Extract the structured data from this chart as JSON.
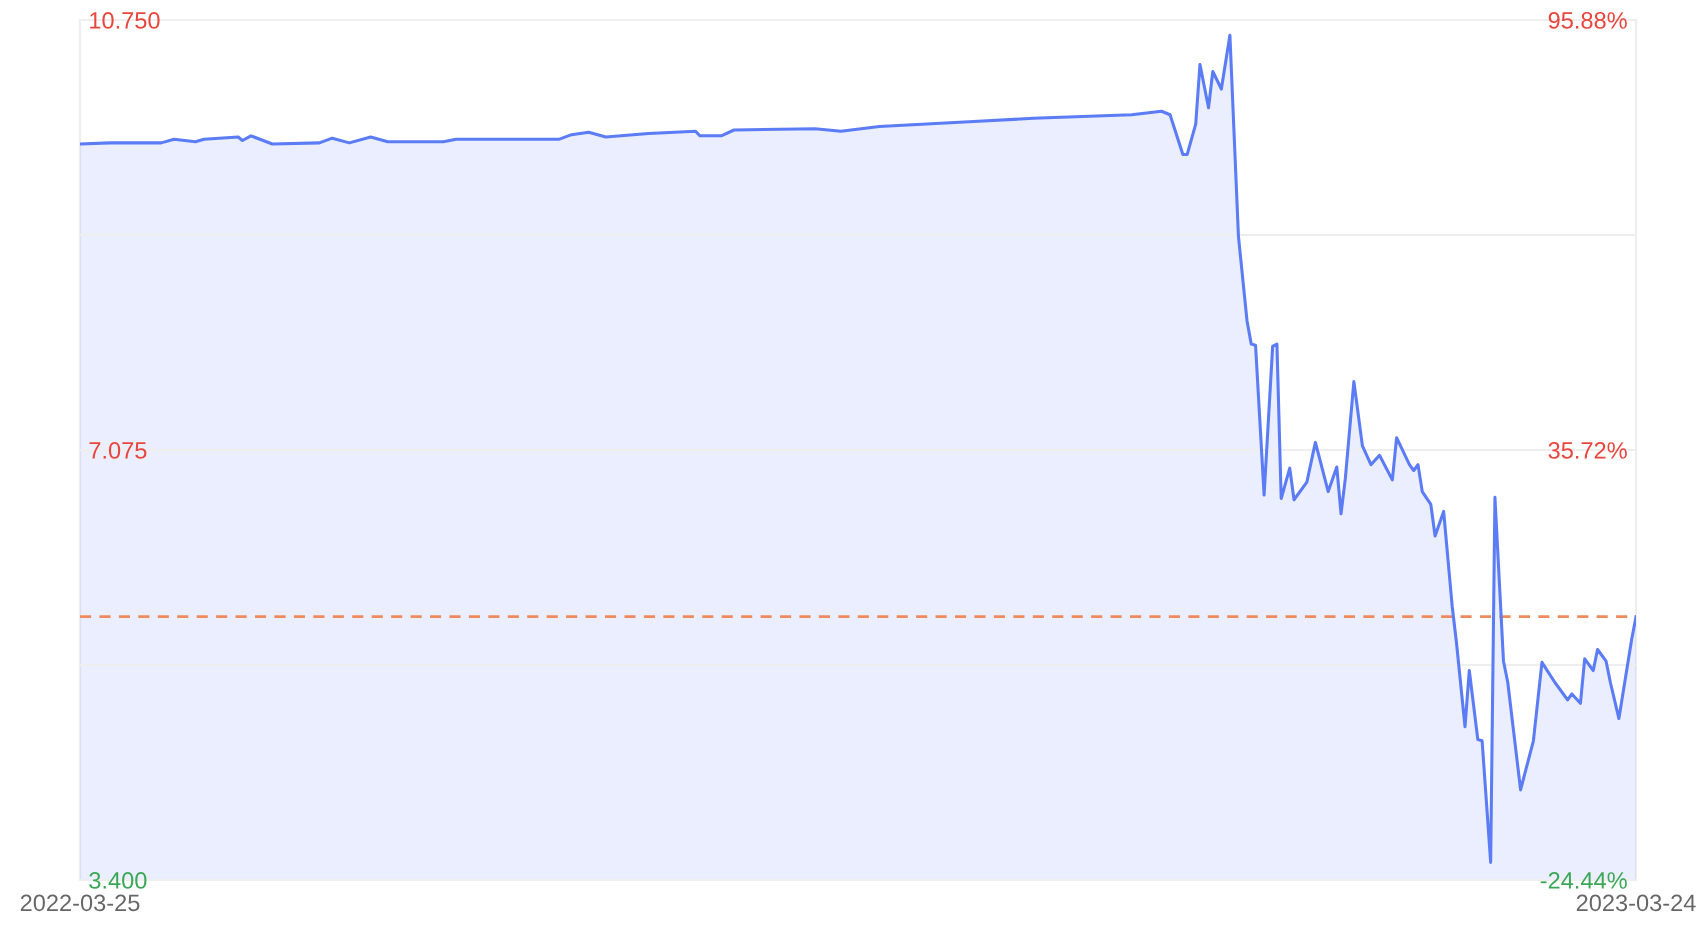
{
  "chart_data": {
    "type": "area",
    "color": "#5b7cf5",
    "x": [
      "2022-03-25",
      "2022-04-01",
      "2022-04-13",
      "2022-04-16",
      "2022-04-21",
      "2022-04-23",
      "2022-05-01",
      "2022-05-02",
      "2022-05-04",
      "2022-05-09",
      "2022-05-20",
      "2022-05-23",
      "2022-05-27",
      "2022-06-01",
      "2022-06-05",
      "2022-06-18",
      "2022-06-21",
      "2022-07-15",
      "2022-07-18",
      "2022-07-22",
      "2022-07-26",
      "2022-08-05",
      "2022-08-16",
      "2022-08-17",
      "2022-08-22",
      "2022-08-25",
      "2022-09-13",
      "2022-09-19",
      "2022-09-28",
      "2022-10-19",
      "2022-11-03",
      "2022-11-26",
      "2022-12-03",
      "2022-12-05",
      "2022-12-08",
      "2022-12-09",
      "2022-12-11",
      "2022-12-12",
      "2022-12-14",
      "2022-12-15",
      "2022-12-17",
      "2022-12-19",
      "2022-12-21",
      "2022-12-23",
      "2022-12-24",
      "2022-12-25",
      "2022-12-27",
      "2022-12-29",
      "2022-12-30",
      "2022-12-31",
      "2023-01-02",
      "2023-01-03",
      "2023-01-06",
      "2023-01-08",
      "2023-01-11",
      "2023-01-13",
      "2023-01-14",
      "2023-01-15",
      "2023-01-17",
      "2023-01-19",
      "2023-01-21",
      "2023-01-23",
      "2023-01-26",
      "2023-01-27",
      "2023-01-30",
      "2023-01-31",
      "2023-02-01",
      "2023-02-02",
      "2023-02-04",
      "2023-02-05",
      "2023-02-07",
      "2023-02-09",
      "2023-02-10",
      "2023-02-12",
      "2023-02-13",
      "2023-02-15",
      "2023-02-16",
      "2023-02-18",
      "2023-02-19",
      "2023-02-21",
      "2023-02-22",
      "2023-02-25",
      "2023-02-28",
      "2023-03-02",
      "2023-03-05",
      "2023-03-08",
      "2023-03-09",
      "2023-03-11",
      "2023-03-12",
      "2023-03-14",
      "2023-03-15",
      "2023-03-17",
      "2023-03-18",
      "2023-03-20",
      "2023-03-23",
      "2023-03-24"
    ],
    "values": [
      9.69,
      9.7,
      9.7,
      9.73,
      9.71,
      9.73,
      9.75,
      9.72,
      9.76,
      9.69,
      9.7,
      9.74,
      9.7,
      9.75,
      9.71,
      9.71,
      9.73,
      9.73,
      9.77,
      9.79,
      9.75,
      9.78,
      9.8,
      9.76,
      9.76,
      9.81,
      9.82,
      9.8,
      9.84,
      9.88,
      9.91,
      9.94,
      9.97,
      9.94,
      9.6,
      9.6,
      9.86,
      10.37,
      10.0,
      10.31,
      10.16,
      10.62,
      8.9,
      8.18,
      7.98,
      7.97,
      6.69,
      7.96,
      7.98,
      6.66,
      6.92,
      6.65,
      6.8,
      7.14,
      6.72,
      6.93,
      6.53,
      6.83,
      7.66,
      7.11,
      6.95,
      7.03,
      6.82,
      7.18,
      6.95,
      6.9,
      6.95,
      6.72,
      6.61,
      6.34,
      6.55,
      5.74,
      5.43,
      4.71,
      5.19,
      4.6,
      4.59,
      3.55,
      6.67,
      5.27,
      5.09,
      4.17,
      4.59,
      5.26,
      5.09,
      4.94,
      4.99,
      4.91,
      5.29,
      5.19,
      5.37,
      5.27,
      5.09,
      4.78,
      5.46,
      5.65
    ],
    "xlim": [
      "2022-03-25",
      "2023-03-24"
    ],
    "xticks": [
      "2022-03-25",
      "2023-03-24"
    ],
    "ylim": [
      3.4,
      10.75
    ],
    "yticks": [
      {
        "value": 3.4,
        "label": "3.400"
      },
      {
        "value": 5.2375,
        "label": null
      },
      {
        "value": 7.075,
        "label": "7.075"
      },
      {
        "value": 8.9125,
        "label": null
      },
      {
        "value": 10.75,
        "label": "10.750"
      }
    ],
    "y2lim": [
      -24.44,
      95.88
    ],
    "y2ticks": [
      {
        "value": -24.44,
        "label": "-24.44%"
      },
      {
        "value": 35.72,
        "label": "35.72%"
      },
      {
        "value": 95.88,
        "label": "95.88%"
      }
    ],
    "ref_lines": [
      {
        "axis": "y",
        "value": 5.65,
        "color": "#ef8a5e",
        "line_style": "dashed"
      }
    ],
    "grid": "y"
  }
}
